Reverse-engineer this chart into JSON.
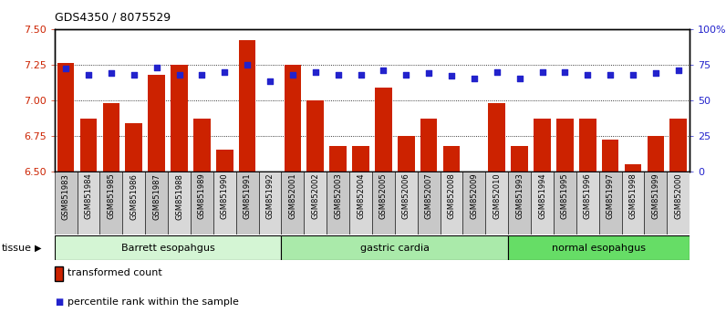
{
  "title": "GDS4350 / 8075529",
  "samples": [
    "GSM851983",
    "GSM851984",
    "GSM851985",
    "GSM851986",
    "GSM851987",
    "GSM851988",
    "GSM851989",
    "GSM851990",
    "GSM851991",
    "GSM851992",
    "GSM852001",
    "GSM852002",
    "GSM852003",
    "GSM852004",
    "GSM852005",
    "GSM852006",
    "GSM852007",
    "GSM852008",
    "GSM852009",
    "GSM852010",
    "GSM851993",
    "GSM851994",
    "GSM851995",
    "GSM851996",
    "GSM851997",
    "GSM851998",
    "GSM851999",
    "GSM852000"
  ],
  "bar_values": [
    7.26,
    6.87,
    6.98,
    6.84,
    7.18,
    7.25,
    6.87,
    6.65,
    7.42,
    6.5,
    7.25,
    7.0,
    6.68,
    6.68,
    7.09,
    6.75,
    6.87,
    6.68,
    6.5,
    6.98,
    6.68,
    6.87,
    6.87,
    6.87,
    6.72,
    6.55,
    6.75,
    6.87
  ],
  "dot_values": [
    72,
    68,
    69,
    68,
    73,
    68,
    68,
    70,
    75,
    63,
    68,
    70,
    68,
    68,
    71,
    68,
    69,
    67,
    65,
    70,
    65,
    70,
    70,
    68,
    68,
    68,
    69,
    71
  ],
  "groups": [
    {
      "label": "Barrett esopahgus",
      "start": 0,
      "end": 9,
      "color": "#d4f5d4"
    },
    {
      "label": "gastric cardia",
      "start": 10,
      "end": 19,
      "color": "#aaeaaa"
    },
    {
      "label": "normal esopahgus",
      "start": 20,
      "end": 27,
      "color": "#66dd66"
    }
  ],
  "bar_color": "#cc2200",
  "dot_color": "#2222cc",
  "ylim_left": [
    6.5,
    7.5
  ],
  "ylim_right": [
    0,
    100
  ],
  "yticks_left": [
    6.5,
    6.75,
    7.0,
    7.25,
    7.5
  ],
  "yticks_right": [
    0,
    25,
    50,
    75,
    100
  ],
  "ytick_labels_right": [
    "0",
    "25",
    "50",
    "75",
    "100%"
  ],
  "hlines": [
    6.75,
    7.0,
    7.25
  ],
  "bar_color_hex": "#cc2200",
  "dot_color_hex": "#2222cc",
  "tick_label_bg_odd": "#cccccc",
  "tick_label_bg_even": "#dddddd",
  "plot_bg": "#ffffff"
}
